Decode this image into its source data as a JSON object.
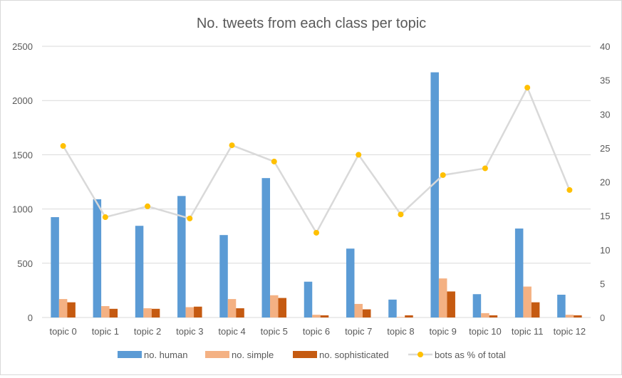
{
  "chart_data": {
    "type": "bar",
    "title": "No. tweets from each class per topic",
    "categories": [
      "topic 0",
      "topic 1",
      "topic 2",
      "topic 3",
      "topic 4",
      "topic 5",
      "topic 6",
      "topic 7",
      "topic 8",
      "topic 9",
      "topic 10",
      "topic 11",
      "topic 12"
    ],
    "series": [
      {
        "name": "no. human",
        "type": "bar",
        "axis": "left",
        "color": "#5b9bd5",
        "values": [
          925,
          1090,
          845,
          1120,
          760,
          1285,
          330,
          635,
          165,
          2260,
          215,
          820,
          210
        ]
      },
      {
        "name": "no. simple",
        "type": "bar",
        "axis": "left",
        "color": "#f4b183",
        "values": [
          170,
          105,
          85,
          95,
          170,
          205,
          25,
          125,
          5,
          360,
          40,
          285,
          25
        ]
      },
      {
        "name": "no. sophisticated",
        "type": "bar",
        "axis": "left",
        "color": "#c55a11",
        "values": [
          140,
          80,
          80,
          100,
          85,
          180,
          20,
          75,
          20,
          240,
          20,
          140,
          20
        ]
      },
      {
        "name": "bots as % of total",
        "type": "line",
        "axis": "right",
        "color": "#d9d9d9",
        "marker_color": "#ffc000",
        "values": [
          25.3,
          14.8,
          16.4,
          14.6,
          25.4,
          23.0,
          12.5,
          24.0,
          15.2,
          21.0,
          22.0,
          33.9,
          18.8
        ]
      }
    ],
    "left_axis": {
      "ylim": [
        0,
        2500
      ],
      "ticks": [
        0,
        500,
        1000,
        1500,
        2000,
        2500
      ]
    },
    "right_axis": {
      "ylim": [
        0,
        40
      ],
      "ticks": [
        0,
        5,
        10,
        15,
        20,
        25,
        30,
        35,
        40
      ]
    },
    "gridlines": true,
    "legend_position": "bottom",
    "xlabel": "",
    "ylabel": ""
  }
}
